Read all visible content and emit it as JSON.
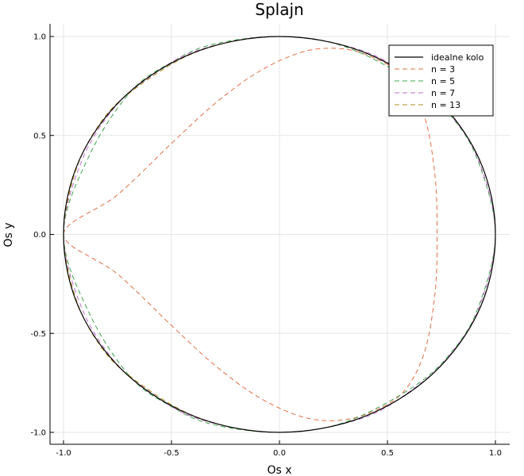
{
  "chart_data": {
    "type": "line",
    "title": "Splajn",
    "xlabel": "Os x",
    "ylabel": "Os y",
    "xlim": [
      -1.05,
      1.05
    ],
    "ylim": [
      -1.06,
      1.06
    ],
    "x_ticks": [
      {
        "value": -1.0,
        "label": "-1.0"
      },
      {
        "value": -0.5,
        "label": "-0.5"
      },
      {
        "value": 0.0,
        "label": "0.0"
      },
      {
        "value": 0.5,
        "label": "0.5"
      },
      {
        "value": 1.0,
        "label": "1.0"
      }
    ],
    "y_ticks": [
      {
        "value": -1.0,
        "label": "-1.0"
      },
      {
        "value": -0.5,
        "label": "-0.5"
      },
      {
        "value": 0.0,
        "label": "0.0"
      },
      {
        "value": 0.5,
        "label": "0.5"
      },
      {
        "value": 1.0,
        "label": "1.0"
      }
    ],
    "grid": true,
    "legend_position": "top-right",
    "series": [
      {
        "name": "idealne kolo",
        "color": "#000000",
        "dash": "solid",
        "points": [
          [
            1,
            0
          ],
          [
            0.924,
            0.383
          ],
          [
            0.707,
            0.707
          ],
          [
            0.383,
            0.924
          ],
          [
            0,
            1
          ],
          [
            -0.383,
            0.924
          ],
          [
            -0.707,
            0.707
          ],
          [
            -0.924,
            0.383
          ],
          [
            -1,
            0
          ],
          [
            -0.924,
            -0.383
          ],
          [
            -0.707,
            -0.707
          ],
          [
            -0.383,
            -0.924
          ],
          [
            0,
            -1
          ],
          [
            0.383,
            -0.924
          ],
          [
            0.707,
            -0.707
          ],
          [
            0.924,
            -0.383
          ],
          [
            1,
            0
          ]
        ]
      },
      {
        "name": "n = 3",
        "color": "#e26f46",
        "dash": "dashed",
        "points": [
          [
            -1,
            0
          ],
          [
            -0.75,
            0.2
          ],
          [
            -0.5,
            0.46
          ],
          [
            -0.3,
            0.66
          ],
          [
            -0.1,
            0.82
          ],
          [
            0.1,
            0.92
          ],
          [
            0.27,
            0.94
          ],
          [
            0.42,
            0.9
          ],
          [
            0.57,
            0.8
          ],
          [
            0.67,
            0.6
          ],
          [
            0.72,
            0.3
          ],
          [
            0.73,
            0
          ],
          [
            0.72,
            -0.3
          ],
          [
            0.67,
            -0.6
          ],
          [
            0.57,
            -0.8
          ],
          [
            0.42,
            -0.9
          ],
          [
            0.27,
            -0.94
          ],
          [
            0.1,
            -0.92
          ],
          [
            -0.1,
            -0.82
          ],
          [
            -0.3,
            -0.66
          ],
          [
            -0.5,
            -0.46
          ],
          [
            -0.75,
            -0.2
          ],
          [
            -1,
            0
          ]
        ]
      },
      {
        "name": "n = 5",
        "color": "#3da44d",
        "dash": "dashed",
        "points": [
          [
            -1,
            0
          ],
          [
            -0.88,
            0.4
          ],
          [
            -0.69,
            0.72
          ],
          [
            -0.5,
            0.87
          ],
          [
            -0.31,
            0.96
          ],
          [
            0,
            1
          ],
          [
            0.3,
            0.95
          ],
          [
            0.62,
            0.77
          ],
          [
            0.8,
            0.59
          ],
          [
            0.92,
            0.37
          ],
          [
            1,
            0
          ],
          [
            0.92,
            -0.37
          ],
          [
            0.8,
            -0.59
          ],
          [
            0.62,
            -0.77
          ],
          [
            0.3,
            -0.95
          ],
          [
            0,
            -1
          ],
          [
            -0.31,
            -0.96
          ],
          [
            -0.5,
            -0.87
          ],
          [
            -0.69,
            -0.72
          ],
          [
            -0.88,
            -0.4
          ],
          [
            -1,
            0
          ]
        ]
      },
      {
        "name": "n = 7",
        "color": "#c271d2",
        "dash": "dashed",
        "points": [
          [
            -1,
            0
          ],
          [
            -0.92,
            0.36
          ],
          [
            -0.78,
            0.62
          ],
          [
            -0.62,
            0.78
          ],
          [
            -0.38,
            0.93
          ],
          [
            0,
            1
          ],
          [
            0.38,
            0.93
          ],
          [
            0.62,
            0.78
          ],
          [
            0.78,
            0.62
          ],
          [
            0.92,
            0.38
          ],
          [
            1,
            0
          ],
          [
            0.92,
            -0.38
          ],
          [
            0.78,
            -0.62
          ],
          [
            0.62,
            -0.78
          ],
          [
            0.38,
            -0.93
          ],
          [
            0,
            -1
          ],
          [
            -0.38,
            -0.93
          ],
          [
            -0.62,
            -0.78
          ],
          [
            -0.78,
            -0.62
          ],
          [
            -0.92,
            -0.36
          ],
          [
            -1,
            0
          ]
        ]
      },
      {
        "name": "n = 13",
        "color": "#ac8d18",
        "dash": "dashed",
        "points": [
          [
            -1,
            0
          ],
          [
            -0.95,
            0.3
          ],
          [
            -0.85,
            0.53
          ],
          [
            -0.7,
            0.71
          ],
          [
            -0.38,
            0.924
          ],
          [
            0,
            1
          ],
          [
            0.383,
            0.924
          ],
          [
            0.707,
            0.707
          ],
          [
            0.924,
            0.383
          ],
          [
            1,
            0
          ],
          [
            0.924,
            -0.383
          ],
          [
            0.707,
            -0.707
          ],
          [
            0.383,
            -0.924
          ],
          [
            0,
            -1
          ],
          [
            -0.38,
            -0.924
          ],
          [
            -0.7,
            -0.71
          ],
          [
            -0.85,
            -0.53
          ],
          [
            -0.95,
            -0.3
          ],
          [
            -1,
            0
          ]
        ]
      }
    ]
  }
}
